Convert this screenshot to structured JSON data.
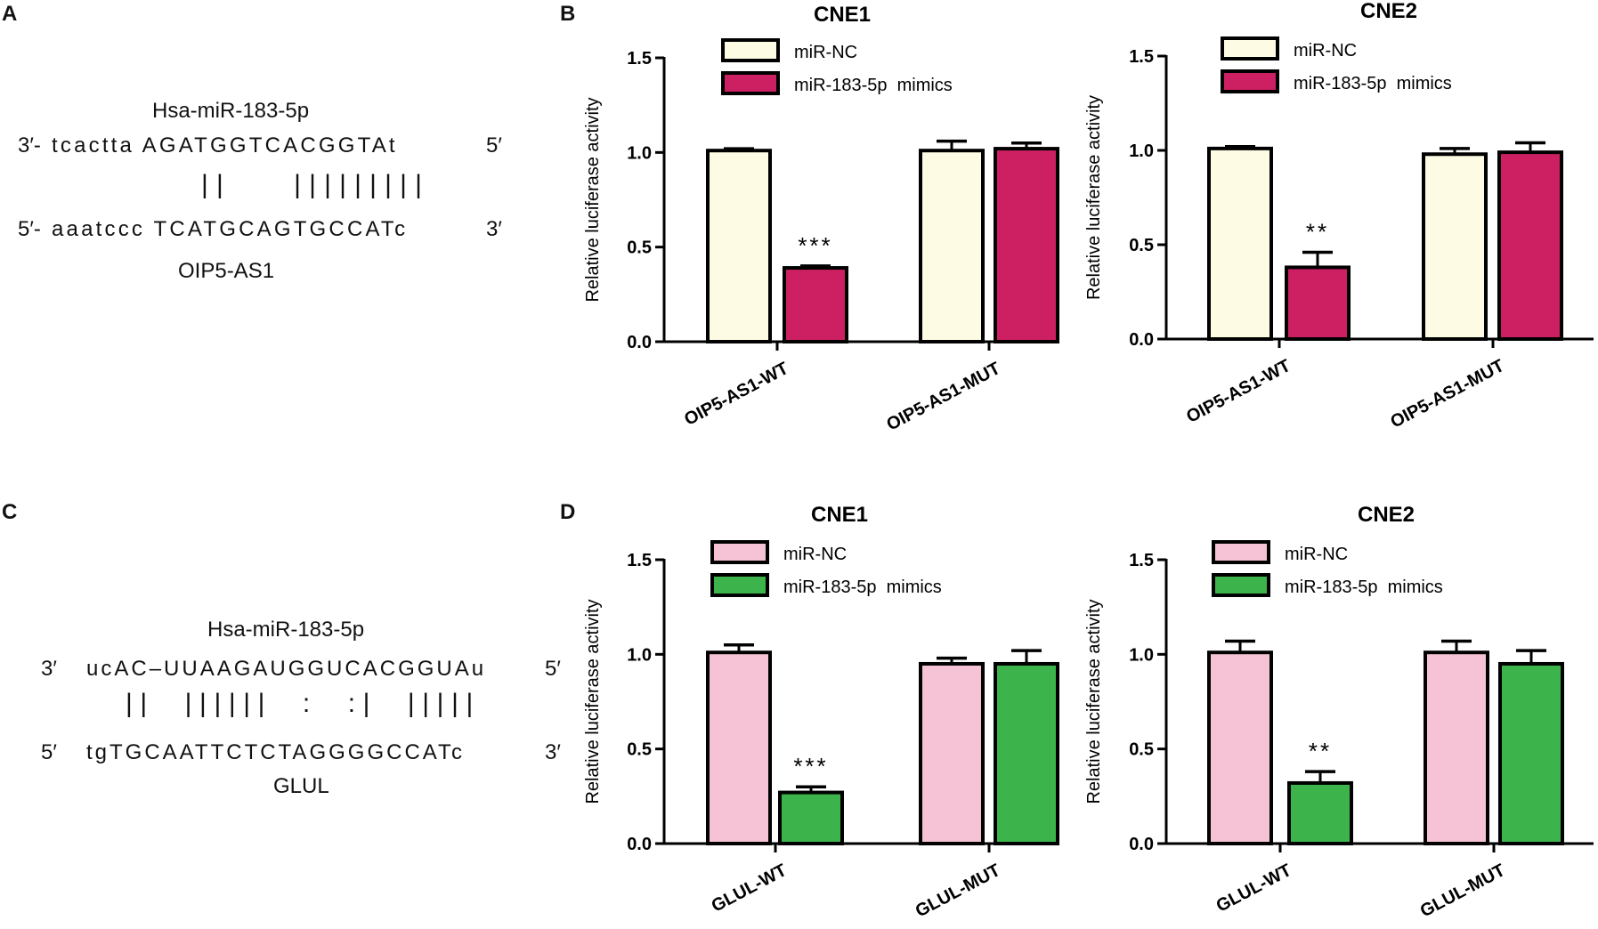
{
  "panels": {
    "A": {
      "letter": "A",
      "mirna": "Hsa-miR-183-5p",
      "mir_prefix": "3′-",
      "mir_seq": "tcactta AGATGGTCACGGTAt",
      "mir_suffix": "5′",
      "pairing": "||    |||||||||",
      "target_prefix": "5′-",
      "target_seq": "aaatccc TCATGCAGTGCCATc",
      "target_suffix": "3′",
      "target_name": "OIP5-AS1"
    },
    "B": {
      "letter": "B"
    },
    "C": {
      "letter": "C",
      "mirna": "Hsa-miR-183-5p",
      "mir_prefix": "3′",
      "mir_seq": "ucAC–UUAAGAUGGUCACGGUAu",
      "mir_suffix": "5′",
      "pairing": "||  ||||||  :  :|  |||||",
      "target_prefix": "5′",
      "target_seq": "tgTGCAATTCTCTAGGGGCCATc",
      "target_suffix": "3′",
      "target_name": "GLUL"
    },
    "D": {
      "letter": "D"
    }
  },
  "colors": {
    "nc_B": "#fdfbe4",
    "mimic_B": "#cc2062",
    "nc_D": "#f6c3d6",
    "mimic_D": "#3cb44b",
    "stroke": "#000000"
  },
  "chart_data": [
    {
      "id": "B1",
      "type": "bar",
      "title": "CNE1",
      "ylabel": "Relative luciferase activity",
      "xlabel": "",
      "ylim": [
        0,
        1.5
      ],
      "yticks": [
        "0.0",
        "0.5",
        "1.0",
        "1.5"
      ],
      "categories": [
        "OIP5-AS1-WT",
        "OIP5-AS1-MUT"
      ],
      "series": [
        {
          "name": "miR-NC",
          "values": [
            1.01,
            1.01
          ],
          "errors": [
            0.01,
            0.05
          ]
        },
        {
          "name": "miR-183-5p  mimics",
          "values": [
            0.39,
            1.02
          ],
          "errors": [
            0.01,
            0.03
          ]
        }
      ],
      "annotations": [
        {
          "category": "OIP5-AS1-WT",
          "series": 1,
          "text": "***"
        }
      ],
      "legend": "top-left"
    },
    {
      "id": "B2",
      "type": "bar",
      "title": "CNE2",
      "ylabel": "Relative luciferase activity",
      "xlabel": "",
      "ylim": [
        0,
        1.5
      ],
      "yticks": [
        "0.0",
        "0.5",
        "1.0",
        "1.5"
      ],
      "categories": [
        "OIP5-AS1-WT",
        "OIP5-AS1-MUT"
      ],
      "series": [
        {
          "name": "miR-NC",
          "values": [
            1.01,
            0.98
          ],
          "errors": [
            0.01,
            0.03
          ]
        },
        {
          "name": "miR-183-5p  mimics",
          "values": [
            0.38,
            0.99
          ],
          "errors": [
            0.08,
            0.05
          ]
        }
      ],
      "annotations": [
        {
          "category": "OIP5-AS1-WT",
          "series": 1,
          "text": "**"
        }
      ],
      "legend": "top-left"
    },
    {
      "id": "D1",
      "type": "bar",
      "title": "CNE1",
      "ylabel": "Relative luciferase activity",
      "xlabel": "",
      "ylim": [
        0,
        1.5
      ],
      "yticks": [
        "0.0",
        "0.5",
        "1.0",
        "1.5"
      ],
      "categories": [
        "GLUL-WT",
        "GLUL-MUT"
      ],
      "series": [
        {
          "name": "miR-NC",
          "values": [
            1.01,
            0.95
          ],
          "errors": [
            0.04,
            0.03
          ]
        },
        {
          "name": "miR-183-5p  mimics",
          "values": [
            0.27,
            0.95
          ],
          "errors": [
            0.03,
            0.07
          ]
        }
      ],
      "annotations": [
        {
          "category": "GLUL-WT",
          "series": 1,
          "text": "***"
        }
      ],
      "legend": "top-left"
    },
    {
      "id": "D2",
      "type": "bar",
      "title": "CNE2",
      "ylabel": "Relative luciferase activity",
      "xlabel": "",
      "ylim": [
        0,
        1.5
      ],
      "yticks": [
        "0.0",
        "0.5",
        "1.0",
        "1.5"
      ],
      "categories": [
        "GLUL-WT",
        "GLUL-MUT"
      ],
      "series": [
        {
          "name": "miR-NC",
          "values": [
            1.01,
            1.01
          ],
          "errors": [
            0.06,
            0.06
          ]
        },
        {
          "name": "miR-183-5p  mimics",
          "values": [
            0.32,
            0.95
          ],
          "errors": [
            0.06,
            0.07
          ]
        }
      ],
      "annotations": [
        {
          "category": "GLUL-WT",
          "series": 1,
          "text": "**"
        }
      ],
      "legend": "top-left"
    }
  ]
}
